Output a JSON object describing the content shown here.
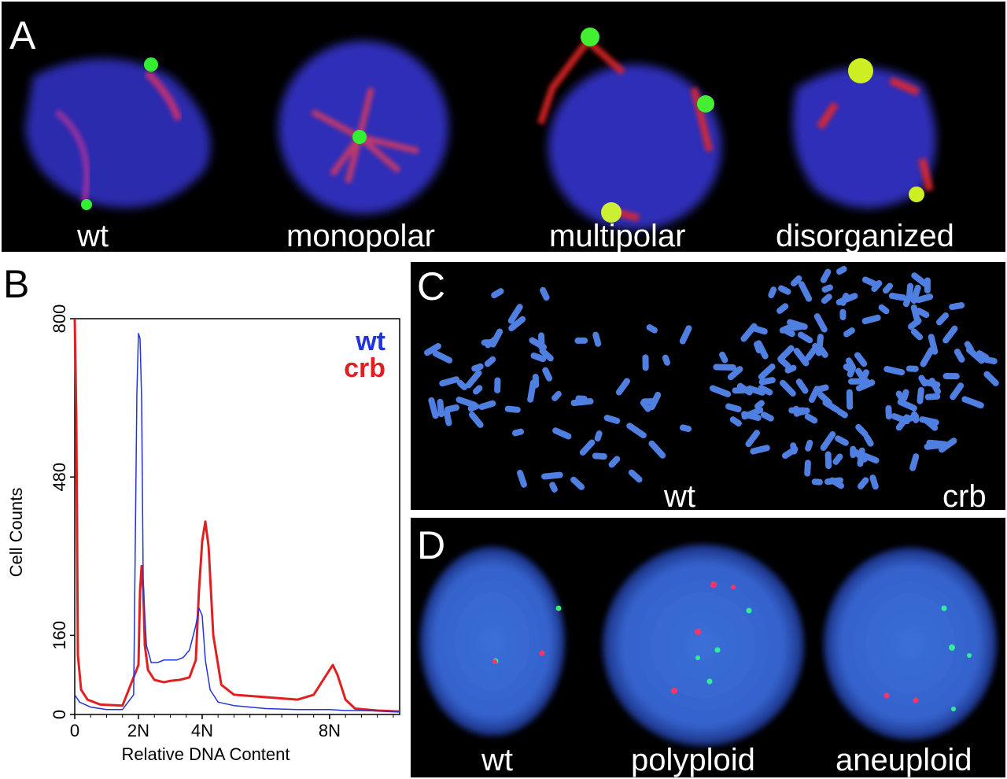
{
  "panel_a": {
    "letter": "A",
    "labels": [
      "wt",
      "monopolar",
      "multipolar",
      "disorganized"
    ]
  },
  "panel_b": {
    "letter": "B"
  },
  "panel_c": {
    "letter": "C",
    "labels": [
      "wt",
      "crb"
    ]
  },
  "panel_d": {
    "letter": "D",
    "labels": [
      "wt",
      "polyploid",
      "aneuploid"
    ]
  },
  "chart_data": {
    "type": "line",
    "xlabel": "Relative DNA Content",
    "ylabel": "Cell Counts",
    "xticks": [
      "0",
      "2N",
      "4N",
      "8N"
    ],
    "xtick_values": [
      0,
      2,
      4,
      8
    ],
    "yticks": [
      0,
      160,
      480,
      800
    ],
    "ylim": [
      0,
      800
    ],
    "xlim": [
      0,
      10.2
    ],
    "legend_position": "top-right",
    "series": [
      {
        "name": "wt",
        "color": "#2233dd",
        "x": [
          0,
          0.15,
          0.5,
          1.0,
          1.5,
          1.85,
          1.95,
          2.0,
          2.05,
          2.1,
          2.15,
          2.25,
          2.4,
          2.6,
          2.8,
          3.0,
          3.2,
          3.4,
          3.6,
          3.8,
          3.9,
          4.0,
          4.1,
          4.25,
          4.5,
          5.0,
          6.0,
          7.0,
          7.5,
          8.0,
          8.5,
          9.0,
          10.2
        ],
        "y": [
          40,
          25,
          15,
          10,
          10,
          40,
          650,
          770,
          760,
          640,
          260,
          140,
          105,
          105,
          110,
          110,
          110,
          115,
          130,
          180,
          215,
          200,
          110,
          50,
          25,
          18,
          12,
          10,
          10,
          10,
          8,
          8,
          6
        ]
      },
      {
        "name": "crb",
        "color": "#e02020",
        "x": [
          0,
          0.05,
          0.1,
          0.2,
          0.4,
          0.8,
          1.5,
          2.0,
          2.05,
          2.1,
          2.15,
          2.2,
          2.3,
          2.5,
          2.8,
          3.0,
          3.3,
          3.6,
          3.8,
          3.9,
          4.0,
          4.1,
          4.2,
          4.35,
          4.6,
          5.0,
          6.0,
          7.0,
          7.5,
          7.8,
          8.0,
          8.1,
          8.25,
          8.5,
          8.8,
          9.5,
          10.2
        ],
        "y": [
          800,
          600,
          120,
          50,
          30,
          20,
          18,
          100,
          250,
          300,
          250,
          140,
          90,
          70,
          65,
          68,
          70,
          75,
          110,
          250,
          350,
          390,
          340,
          160,
          60,
          40,
          35,
          30,
          40,
          70,
          90,
          100,
          80,
          30,
          12,
          8,
          6
        ]
      }
    ]
  }
}
